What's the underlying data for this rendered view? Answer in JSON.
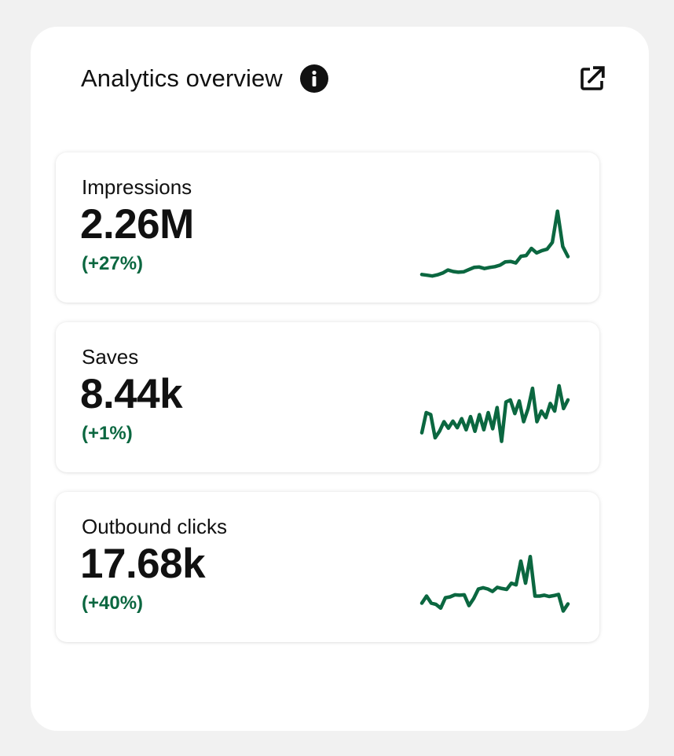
{
  "header": {
    "title": "Analytics overview",
    "info_icon": "info-icon",
    "export_icon": "open-in-new-icon"
  },
  "accent_color": "#0b6740",
  "cards": [
    {
      "label": "Impressions",
      "value": "2.26M",
      "change": "(+27%)",
      "trend": [
        5,
        4.8,
        4.6,
        4.9,
        5.4,
        6.2,
        5.8,
        5.6,
        5.7,
        6.3,
        6.9,
        7.0,
        6.6,
        6.9,
        7.1,
        7.5,
        8.4,
        8.5,
        8.1,
        9.9,
        10.1,
        12.0,
        10.8,
        11.4,
        11.8,
        13.6,
        22.0,
        12.5,
        9.8
      ],
      "trend_range": [
        4,
        23
      ]
    },
    {
      "label": "Saves",
      "value": "8.44k",
      "change": "(+1%)",
      "trend": [
        10,
        14,
        13.6,
        9,
        10.3,
        12.2,
        10.9,
        12.3,
        11,
        12.8,
        10.6,
        13.2,
        10.3,
        13.6,
        10.6,
        14,
        10.8,
        15,
        8.3,
        16.1,
        16.5,
        13.8,
        16.3,
        12.2,
        14.8,
        18.8,
        12.2,
        14.3,
        13,
        15.8,
        14.3,
        19.3,
        14.8,
        16.5
      ],
      "trend_range": [
        7,
        21
      ]
    },
    {
      "label": "Outbound clicks",
      "value": "17.68k",
      "change": "(+40%)",
      "trend": [
        5.5,
        7.2,
        5.5,
        5.2,
        4.3,
        6.8,
        7.0,
        7.5,
        7.4,
        7.5,
        4.9,
        6.6,
        8.9,
        9.2,
        8.9,
        8.3,
        9.3,
        9.0,
        8.8,
        10.3,
        9.9,
        15.6,
        10.3,
        16.7,
        7.2,
        7.2,
        7.4,
        7.1,
        7.3,
        7.6,
        3.6,
        5.3
      ],
      "trend_range": [
        2,
        19
      ]
    }
  ]
}
